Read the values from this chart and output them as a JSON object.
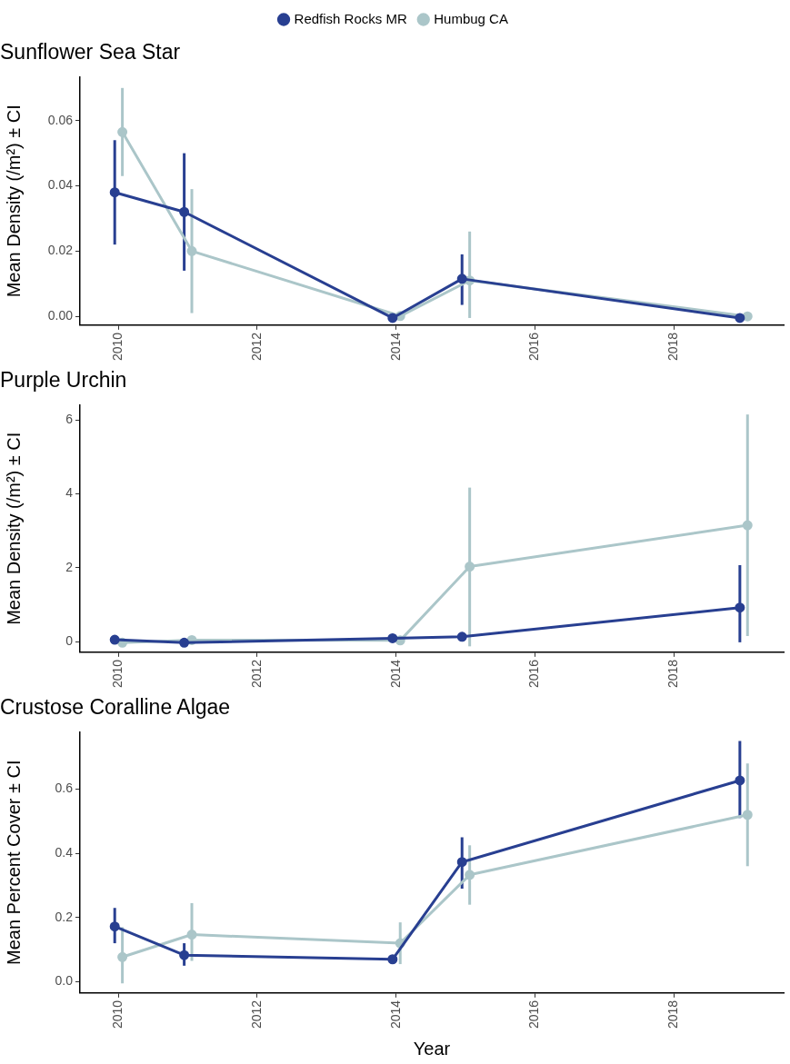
{
  "chart_data": [
    {
      "type": "line",
      "title": "Sunflower Sea Star",
      "ylabel": "Mean Density (/m²) ± CI",
      "xlim": [
        2009.45,
        2019.58
      ],
      "xticks": [
        2010,
        2012,
        2014,
        2016,
        2018
      ],
      "ylim": [
        -0.0027,
        0.0734
      ],
      "yticks": [
        {
          "value": 0,
          "label": "0.00"
        },
        {
          "value": 0.02,
          "label": "0.02"
        },
        {
          "value": 0.04,
          "label": "0.04"
        },
        {
          "value": 0.06,
          "label": "0.06"
        }
      ],
      "grid": false,
      "legend": "top",
      "marker": "circle",
      "line_style": "solid",
      "series": [
        {
          "name": "Redfish Rocks MR",
          "color": "#283f91",
          "x": [
            2009.95,
            2010.95,
            2013.95,
            2014.95,
            2018.95
          ],
          "values": [
            0.038,
            0.032,
            -0.0005,
            0.0115,
            -0.0005
          ],
          "errors": [
            [
              0.022,
              0.054
            ],
            [
              0.014,
              0.05
            ],
            null,
            [
              0.0035,
              0.019
            ],
            null
          ]
        },
        {
          "name": "Humbug CA",
          "color": "#abc6c9",
          "x": [
            2010.06,
            2011.06,
            2014.06,
            2015.06,
            2019.06
          ],
          "values": [
            0.0565,
            0.02,
            0.0001,
            0.011,
            0
          ],
          "errors": [
            [
              0.043,
              0.07
            ],
            [
              0.001,
              0.039
            ],
            null,
            [
              -0.0005,
              0.026
            ],
            null
          ]
        }
      ]
    },
    {
      "type": "line",
      "title": "Purple Urchin",
      "ylabel": "Mean Density (/m²) ± CI",
      "xlim": [
        2009.45,
        2019.58
      ],
      "xticks": [
        2010,
        2012,
        2014,
        2016,
        2018
      ],
      "ylim": [
        -0.29,
        6.41
      ],
      "yticks": [
        0,
        2,
        4,
        6
      ],
      "grid": false,
      "marker": "circle",
      "line_style": "solid",
      "series": [
        {
          "color": "#283f91",
          "x": [
            2009.95,
            2010.95,
            2013.95,
            2014.95,
            2018.95
          ],
          "values": [
            0.05,
            -0.03,
            0.09,
            0.13,
            0.92
          ],
          "errors": [
            null,
            null,
            null,
            null,
            [
              -0.02,
              2.07
            ]
          ]
        },
        {
          "color": "#abc6c9",
          "x": [
            2010.06,
            2011.06,
            2014.06,
            2015.06,
            2019.06
          ],
          "values": [
            -0.03,
            0.04,
            0.03,
            2.03,
            3.15
          ],
          "errors": [
            null,
            null,
            null,
            [
              -0.13,
              4.17
            ],
            [
              0.15,
              6.15
            ]
          ]
        }
      ]
    },
    {
      "type": "line",
      "title": "Crustose Coralline Algae",
      "ylabel": "Mean Percent Cover ± CI",
      "xlabel": "Year",
      "xlim": [
        2009.45,
        2019.58
      ],
      "xticks": [
        2010,
        2012,
        2014,
        2016,
        2018
      ],
      "ylim": [
        -0.035,
        0.778
      ],
      "yticks": [
        {
          "value": 0,
          "label": "0.0"
        },
        {
          "value": 0.2,
          "label": "0.2"
        },
        {
          "value": 0.4,
          "label": "0.4"
        },
        {
          "value": 0.6,
          "label": "0.6"
        }
      ],
      "grid": false,
      "marker": "circle",
      "line_style": "solid",
      "series": [
        {
          "color": "#283f91",
          "x": [
            2009.95,
            2010.95,
            2013.95,
            2014.95,
            2018.95
          ],
          "values": [
            0.172,
            0.083,
            0.07,
            0.373,
            0.627
          ],
          "errors": [
            [
              0.12,
              0.23
            ],
            [
              0.05,
              0.12
            ],
            null,
            [
              0.29,
              0.45
            ],
            [
              0.51,
              0.75
            ]
          ]
        },
        {
          "color": "#abc6c9",
          "x": [
            2010.06,
            2011.06,
            2014.06,
            2015.06,
            2019.06
          ],
          "values": [
            0.077,
            0.147,
            0.12,
            0.333,
            0.52
          ],
          "errors": [
            [
              -0.005,
              0.17
            ],
            [
              0.065,
              0.245
            ],
            [
              0.055,
              0.185
            ],
            [
              0.24,
              0.425
            ],
            [
              0.36,
              0.68
            ]
          ]
        }
      ]
    }
  ]
}
